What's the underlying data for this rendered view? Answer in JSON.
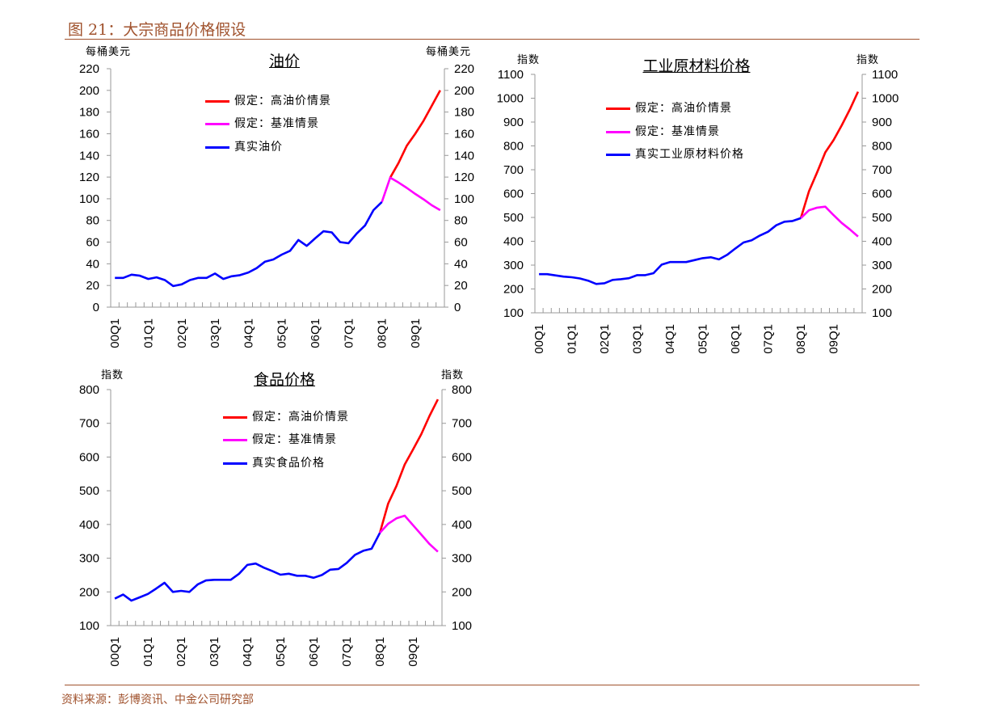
{
  "header": {
    "title": "图 21：大宗商品价格假设"
  },
  "footer": {
    "source": "资料来源：彭博资讯、中金公司研究部"
  },
  "colors": {
    "high": "#ff0000",
    "base": "#ff00ff",
    "actual": "#0000ff",
    "accent": "#a0522d",
    "axis": "#999999"
  },
  "chart_data": [
    {
      "type": "line",
      "title": "油价",
      "ylabel_left": "每桶美元",
      "ylabel_right": "每桶美元",
      "ylim": [
        0,
        220
      ],
      "ystep": 20,
      "grid": false,
      "legend_position": "top-center",
      "x": [
        "00Q1",
        "00Q2",
        "00Q3",
        "00Q4",
        "01Q1",
        "01Q2",
        "01Q3",
        "01Q4",
        "02Q1",
        "02Q2",
        "02Q3",
        "02Q4",
        "03Q1",
        "03Q2",
        "03Q3",
        "03Q4",
        "04Q1",
        "04Q2",
        "04Q3",
        "04Q4",
        "05Q1",
        "05Q2",
        "05Q3",
        "05Q4",
        "06Q1",
        "06Q2",
        "06Q3",
        "06Q4",
        "07Q1",
        "07Q2",
        "07Q3",
        "07Q4",
        "08Q1",
        "08Q2",
        "08Q3",
        "08Q4",
        "09Q1",
        "09Q2",
        "09Q3",
        "09Q4"
      ],
      "x_tick_labels": [
        "00Q1",
        "01Q1",
        "02Q1",
        "03Q1",
        "04Q1",
        "05Q1",
        "06Q1",
        "07Q1",
        "08Q1",
        "09Q1"
      ],
      "series": [
        {
          "name": "假定：高油价情景",
          "key": "high",
          "values": [
            null,
            null,
            null,
            null,
            null,
            null,
            null,
            null,
            null,
            null,
            null,
            null,
            null,
            null,
            null,
            null,
            null,
            null,
            null,
            null,
            null,
            null,
            null,
            null,
            null,
            null,
            null,
            null,
            null,
            null,
            null,
            null,
            null,
            119.5,
            133,
            149,
            160,
            172,
            186,
            200
          ]
        },
        {
          "name": "假定：基准情景",
          "key": "base",
          "values": [
            null,
            null,
            null,
            null,
            null,
            null,
            null,
            null,
            null,
            null,
            null,
            null,
            null,
            null,
            null,
            null,
            null,
            null,
            null,
            null,
            null,
            null,
            null,
            null,
            null,
            null,
            null,
            null,
            null,
            null,
            null,
            null,
            97,
            119.5,
            115,
            110,
            104.5,
            99.5,
            94,
            89.5
          ]
        },
        {
          "name": "真实油价",
          "key": "actual",
          "values": [
            27,
            27,
            30,
            29,
            26,
            27.5,
            25,
            19.5,
            21,
            25,
            27,
            27,
            31,
            26,
            28.5,
            29.5,
            32,
            36,
            42,
            44,
            48.5,
            52,
            62,
            56.5,
            63.5,
            70,
            69,
            60,
            59,
            68,
            75.5,
            89.5,
            97,
            null,
            null,
            null,
            null,
            null,
            null,
            null
          ]
        }
      ]
    },
    {
      "type": "line",
      "title": "工业原材料价格",
      "ylabel_left": "指数",
      "ylabel_right": "指数",
      "ylim": [
        100,
        1100
      ],
      "ystep": 100,
      "grid": false,
      "legend_position": "top-center",
      "x": [
        "00Q1",
        "00Q2",
        "00Q3",
        "00Q4",
        "01Q1",
        "01Q2",
        "01Q3",
        "01Q4",
        "02Q1",
        "02Q2",
        "02Q3",
        "02Q4",
        "03Q1",
        "03Q2",
        "03Q3",
        "03Q4",
        "04Q1",
        "04Q2",
        "04Q3",
        "04Q4",
        "05Q1",
        "05Q2",
        "05Q3",
        "05Q4",
        "06Q1",
        "06Q2",
        "06Q3",
        "06Q4",
        "07Q1",
        "07Q2",
        "07Q3",
        "07Q4",
        "08Q1",
        "08Q2",
        "08Q3",
        "08Q4",
        "09Q1",
        "09Q2",
        "09Q3",
        "09Q4"
      ],
      "x_tick_labels": [
        "00Q1",
        "01Q1",
        "02Q1",
        "03Q1",
        "04Q1",
        "05Q1",
        "06Q1",
        "07Q1",
        "08Q1",
        "09Q1"
      ],
      "series": [
        {
          "name": "假定：高油价情景",
          "key": "high",
          "values": [
            null,
            null,
            null,
            null,
            null,
            null,
            null,
            null,
            null,
            null,
            null,
            null,
            null,
            null,
            null,
            null,
            null,
            null,
            null,
            null,
            null,
            null,
            null,
            null,
            null,
            null,
            null,
            null,
            null,
            null,
            null,
            null,
            497,
            610,
            689,
            773,
            824,
            886,
            953,
            1027
          ]
        },
        {
          "name": "假定：基准情景",
          "key": "base",
          "values": [
            null,
            null,
            null,
            null,
            null,
            null,
            null,
            null,
            null,
            null,
            null,
            null,
            null,
            null,
            null,
            null,
            null,
            null,
            null,
            null,
            null,
            null,
            null,
            null,
            null,
            null,
            null,
            null,
            null,
            null,
            null,
            null,
            497,
            530,
            541,
            545,
            510,
            477,
            450,
            420
          ]
        },
        {
          "name": "真实工业原材料价格",
          "key": "actual",
          "values": [
            262,
            262,
            257,
            252,
            249,
            244,
            235,
            221,
            224,
            238,
            241,
            245,
            258,
            258,
            266,
            302,
            313,
            313,
            313,
            321,
            329,
            333,
            324,
            343,
            370,
            395,
            404,
            424,
            440,
            467,
            482,
            485,
            497,
            null,
            null,
            null,
            null,
            null,
            null,
            null
          ]
        }
      ]
    },
    {
      "type": "line",
      "title": "食品价格",
      "ylabel_left": "指数",
      "ylabel_right": "指数",
      "ylim": [
        100,
        800
      ],
      "ystep": 100,
      "grid": false,
      "legend_position": "top-center",
      "x": [
        "00Q1",
        "00Q2",
        "00Q3",
        "00Q4",
        "01Q1",
        "01Q2",
        "01Q3",
        "01Q4",
        "02Q1",
        "02Q2",
        "02Q3",
        "02Q4",
        "03Q1",
        "03Q2",
        "03Q3",
        "03Q4",
        "04Q1",
        "04Q2",
        "04Q3",
        "04Q4",
        "05Q1",
        "05Q2",
        "05Q3",
        "05Q4",
        "06Q1",
        "06Q2",
        "06Q3",
        "06Q4",
        "07Q1",
        "07Q2",
        "07Q3",
        "07Q4",
        "08Q1",
        "08Q2",
        "08Q3",
        "08Q4",
        "09Q1",
        "09Q2",
        "09Q3",
        "09Q4"
      ],
      "x_tick_labels": [
        "00Q1",
        "01Q1",
        "02Q1",
        "03Q1",
        "04Q1",
        "05Q1",
        "06Q1",
        "07Q1",
        "08Q1",
        "09Q1"
      ],
      "series": [
        {
          "name": "假定：高油价情景",
          "key": "high",
          "values": [
            null,
            null,
            null,
            null,
            null,
            null,
            null,
            null,
            null,
            null,
            null,
            null,
            null,
            null,
            null,
            null,
            null,
            null,
            null,
            null,
            null,
            null,
            null,
            null,
            null,
            null,
            null,
            null,
            null,
            null,
            null,
            null,
            375,
            462,
            514,
            578,
            622,
            668,
            722,
            771
          ]
        },
        {
          "name": "假定：基准情景",
          "key": "base",
          "values": [
            null,
            null,
            null,
            null,
            null,
            null,
            null,
            null,
            null,
            null,
            null,
            null,
            null,
            null,
            null,
            null,
            null,
            null,
            null,
            null,
            null,
            null,
            null,
            null,
            null,
            null,
            null,
            null,
            null,
            null,
            null,
            null,
            375,
            402,
            418,
            426,
            398,
            370,
            342,
            319
          ]
        },
        {
          "name": "真实食品价格",
          "key": "actual",
          "values": [
            180,
            192,
            174,
            184,
            194,
            210,
            227,
            200,
            203,
            200,
            222,
            234,
            236,
            236,
            236,
            254,
            280,
            284,
            272,
            262,
            251,
            254,
            248,
            248,
            242,
            250,
            266,
            268,
            286,
            310,
            322,
            328,
            375,
            null,
            null,
            null,
            null,
            null,
            null,
            null
          ]
        }
      ]
    }
  ]
}
